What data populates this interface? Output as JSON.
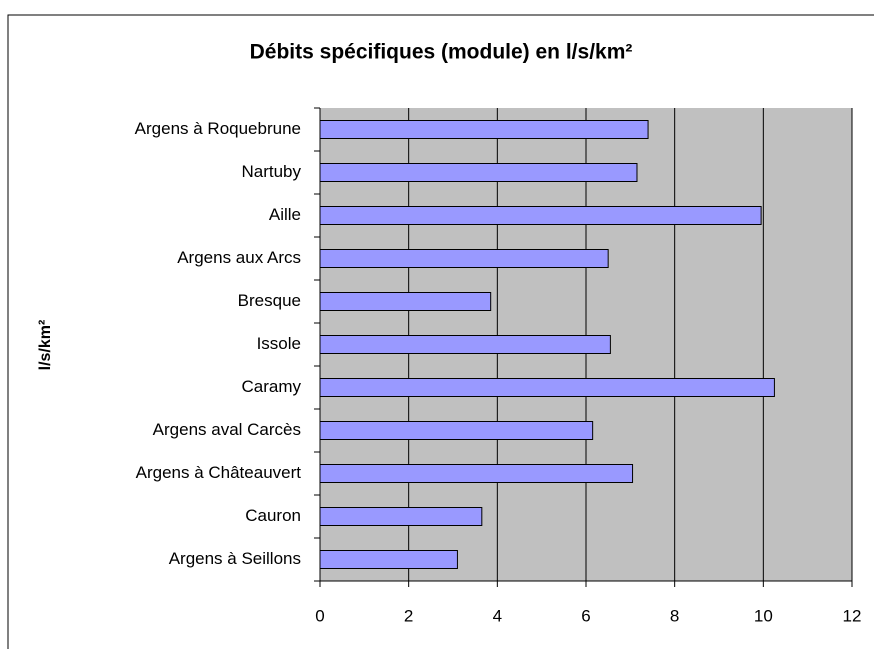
{
  "chart_data": {
    "type": "bar",
    "orientation": "horizontal",
    "title": "Débits spécifiques (module) en l/s/km²",
    "y_label": "l/s/km²",
    "categories": [
      "Argens à Roquebrune",
      "Nartuby",
      "Aille",
      "Argens aux Arcs",
      "Bresque",
      "Issole",
      "Caramy",
      "Argens aval Carcès",
      "Argens à Châteauvert",
      "Cauron",
      "Argens à Seillons"
    ],
    "values": [
      7.4,
      7.15,
      9.95,
      6.5,
      3.85,
      6.55,
      10.25,
      6.15,
      7.05,
      3.65,
      3.1
    ],
    "color": "#9999ff",
    "xlim": [
      0,
      12
    ],
    "xticks": [
      0,
      2,
      4,
      6,
      8,
      10,
      12
    ],
    "grid": true
  }
}
